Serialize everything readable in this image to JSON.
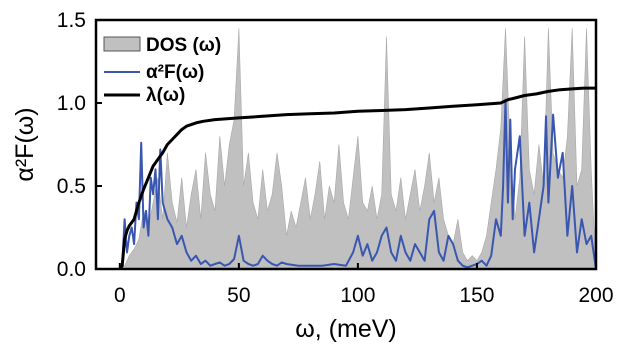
{
  "chart_data": {
    "type": "line",
    "title": "",
    "xlabel": "ω, (meV)",
    "ylabel": "α²F(ω)",
    "xlim": [
      -10,
      200
    ],
    "ylim": [
      0,
      1.5
    ],
    "x_ticks": [
      0,
      50,
      100,
      150,
      200
    ],
    "y_ticks": [
      0.0,
      0.5,
      1.0,
      1.5
    ],
    "x_tick_labels": [
      "0",
      "50",
      "100",
      "150",
      "200"
    ],
    "y_tick_labels": [
      "0.0",
      "0.5",
      "1.0",
      "1.5"
    ],
    "grid": false,
    "legend_position": "top-left",
    "series": [
      {
        "name": "DOS (ω)",
        "style": "filled-area",
        "color": "#c0c0c0",
        "x": [
          0,
          2,
          4,
          6,
          8,
          10,
          12,
          14,
          16,
          18,
          20,
          22,
          24,
          26,
          28,
          30,
          32,
          34,
          36,
          38,
          40,
          42,
          44,
          46,
          48,
          50,
          52,
          54,
          56,
          58,
          60,
          62,
          64,
          66,
          68,
          70,
          72,
          74,
          76,
          78,
          80,
          82,
          84,
          86,
          88,
          90,
          92,
          94,
          96,
          98,
          100,
          102,
          104,
          106,
          108,
          110,
          112,
          114,
          116,
          118,
          120,
          122,
          124,
          126,
          128,
          130,
          132,
          134,
          136,
          138,
          140,
          142,
          144,
          146,
          148,
          150,
          152,
          154,
          156,
          158,
          160,
          162,
          164,
          166,
          168,
          170,
          172,
          174,
          176,
          178,
          180,
          182,
          184,
          186,
          188,
          190,
          192,
          194,
          196,
          198,
          200
        ],
        "values": [
          0.0,
          0.02,
          0.08,
          0.12,
          0.18,
          0.35,
          0.25,
          0.4,
          0.55,
          0.3,
          0.7,
          0.4,
          0.28,
          0.55,
          0.25,
          0.45,
          0.6,
          0.3,
          0.7,
          0.45,
          0.35,
          0.8,
          0.5,
          0.75,
          0.9,
          1.45,
          0.5,
          0.7,
          0.4,
          0.3,
          0.6,
          0.35,
          0.45,
          0.7,
          0.5,
          0.2,
          0.35,
          0.25,
          0.4,
          0.55,
          0.3,
          0.45,
          0.65,
          0.3,
          0.5,
          0.4,
          0.75,
          0.4,
          0.3,
          0.55,
          0.8,
          0.4,
          0.35,
          0.5,
          0.3,
          0.45,
          1.4,
          0.45,
          0.35,
          0.55,
          0.3,
          0.45,
          0.6,
          0.35,
          0.5,
          0.7,
          0.4,
          0.55,
          0.3,
          0.2,
          0.15,
          0.3,
          0.1,
          0.05,
          0.08,
          0.05,
          0.1,
          0.2,
          0.4,
          0.6,
          0.85,
          1.45,
          0.7,
          0.3,
          0.55,
          1.4,
          0.6,
          0.45,
          0.75,
          0.5,
          1.45,
          0.7,
          0.6,
          0.55,
          0.8,
          1.45,
          0.5,
          0.6,
          1.45,
          0.6,
          0.0
        ]
      },
      {
        "name": "α²F(ω)",
        "style": "line",
        "color": "#3a57b0",
        "x": [
          0,
          1,
          2,
          3,
          4,
          5,
          6,
          7,
          8,
          9,
          10,
          11,
          12,
          13,
          14,
          15,
          16,
          17,
          18,
          19,
          20,
          22,
          24,
          26,
          28,
          30,
          32,
          34,
          36,
          38,
          40,
          42,
          44,
          46,
          48,
          50,
          52,
          54,
          56,
          58,
          60,
          62,
          64,
          66,
          68,
          70,
          75,
          80,
          85,
          90,
          95,
          98,
          100,
          102,
          104,
          106,
          108,
          110,
          112,
          114,
          116,
          118,
          120,
          122,
          124,
          126,
          128,
          130,
          132,
          134,
          136,
          138,
          140,
          142,
          144,
          146,
          148,
          150,
          152,
          154,
          156,
          158,
          160,
          161,
          162,
          163,
          164,
          165,
          166,
          168,
          170,
          172,
          174,
          176,
          178,
          179,
          180,
          182,
          184,
          186,
          188,
          190,
          192,
          194,
          196,
          198,
          200
        ],
        "values": [
          0.0,
          0.02,
          0.3,
          0.1,
          0.2,
          0.25,
          0.15,
          0.4,
          0.3,
          0.76,
          0.25,
          0.35,
          0.2,
          0.55,
          0.45,
          0.6,
          0.3,
          0.72,
          0.4,
          0.35,
          0.3,
          0.25,
          0.15,
          0.2,
          0.1,
          0.05,
          0.08,
          0.03,
          0.05,
          0.02,
          0.03,
          0.04,
          0.02,
          0.03,
          0.06,
          0.2,
          0.05,
          0.03,
          0.02,
          0.03,
          0.08,
          0.05,
          0.03,
          0.02,
          0.04,
          0.03,
          0.02,
          0.02,
          0.02,
          0.03,
          0.02,
          0.1,
          0.2,
          0.08,
          0.15,
          0.05,
          0.1,
          0.2,
          0.25,
          0.1,
          0.05,
          0.2,
          0.1,
          0.05,
          0.15,
          0.1,
          0.05,
          0.3,
          0.35,
          0.1,
          0.05,
          0.2,
          0.15,
          0.05,
          0.02,
          0.01,
          0.02,
          0.03,
          0.05,
          0.02,
          0.08,
          0.3,
          0.2,
          0.5,
          1.02,
          0.4,
          0.9,
          0.3,
          0.6,
          0.8,
          0.2,
          0.4,
          0.1,
          0.3,
          0.5,
          0.92,
          0.4,
          0.93,
          0.55,
          0.7,
          0.2,
          0.5,
          0.1,
          0.3,
          0.15,
          0.2,
          0.0
        ]
      },
      {
        "name": "λ(ω)",
        "style": "line",
        "color": "#000000",
        "x": [
          0,
          1,
          2,
          3,
          4,
          6,
          8,
          10,
          12,
          14,
          16,
          18,
          20,
          22,
          24,
          26,
          28,
          30,
          32,
          35,
          40,
          45,
          50,
          55,
          60,
          70,
          80,
          90,
          100,
          110,
          120,
          130,
          140,
          150,
          160,
          163,
          166,
          170,
          175,
          180,
          185,
          190,
          195,
          200
        ],
        "values": [
          0.0,
          0.02,
          0.18,
          0.23,
          0.26,
          0.3,
          0.4,
          0.48,
          0.55,
          0.62,
          0.66,
          0.7,
          0.75,
          0.78,
          0.81,
          0.84,
          0.86,
          0.87,
          0.88,
          0.89,
          0.9,
          0.905,
          0.91,
          0.915,
          0.92,
          0.93,
          0.935,
          0.94,
          0.95,
          0.955,
          0.96,
          0.97,
          0.98,
          0.99,
          1.0,
          1.02,
          1.03,
          1.045,
          1.055,
          1.07,
          1.08,
          1.085,
          1.09,
          1.09
        ]
      }
    ]
  }
}
